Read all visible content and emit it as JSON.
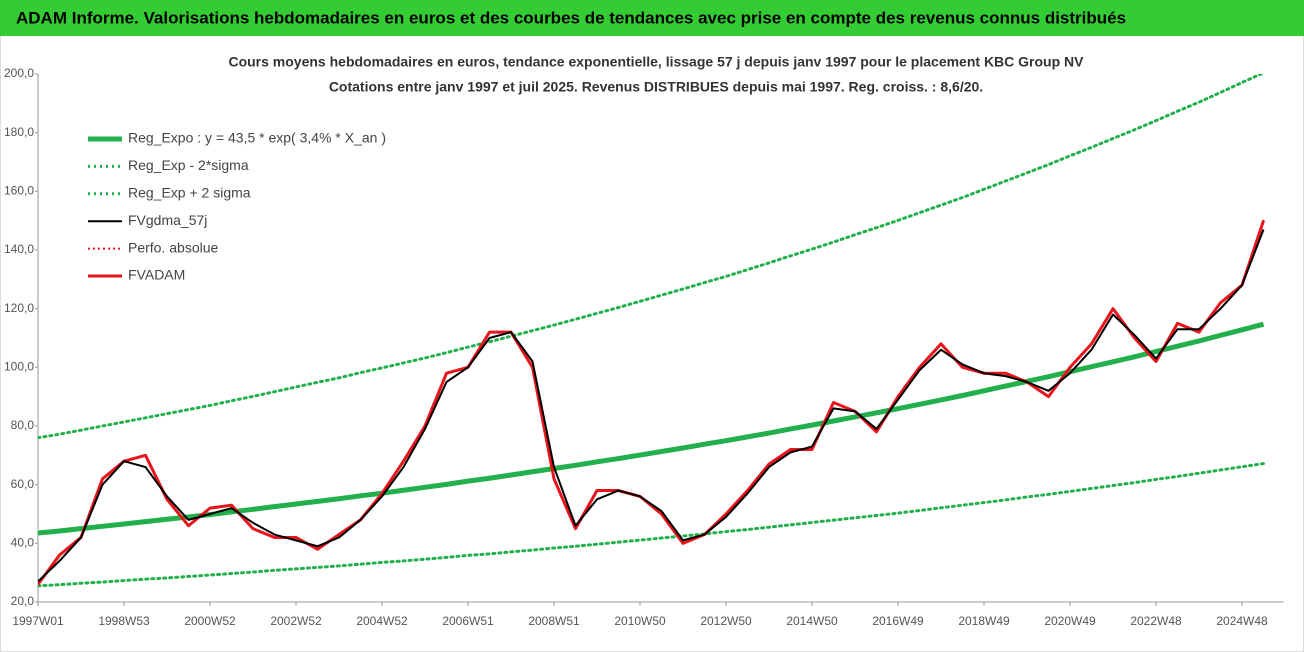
{
  "chart_data": {
    "type": "line",
    "title": "ADAM Informe. Valorisations hebdomadaires en euros et des courbes de tendances avec prise en compte des revenus connus distribués",
    "subtitle": [
      "Cours moyens hebdomadaires en euros, tendance exponentielle, lissage 57 j depuis janv 1997  pour le placement KBC Group NV",
      "Cotations entre janv 1997 et juil 2025. Revenus DISTRIBUES depuis mai 1997. Reg. croiss. : 8,6/20."
    ],
    "categories": [
      "1997W01",
      null,
      null,
      null,
      "1998W53",
      null,
      null,
      null,
      "2000W52",
      null,
      null,
      null,
      "2002W52",
      null,
      null,
      null,
      "2004W52",
      null,
      null,
      null,
      "2006W51",
      null,
      null,
      null,
      "2008W51",
      null,
      null,
      null,
      "2010W50",
      null,
      null,
      null,
      "2012W50",
      null,
      null,
      null,
      "2014W50",
      null,
      null,
      null,
      "2016W49",
      null,
      null,
      null,
      "2018W49",
      null,
      null,
      null,
      "2020W49",
      null,
      null,
      null,
      "2022W48",
      null,
      null,
      null,
      "2024W48",
      null
    ],
    "ylim": [
      20,
      200
    ],
    "yticks": [
      {
        "value": 20,
        "label": "20,0"
      },
      {
        "value": 40,
        "label": "40,0"
      },
      {
        "value": 60,
        "label": "60,0"
      },
      {
        "value": 80,
        "label": "80,0"
      },
      {
        "value": 100,
        "label": "100,0"
      },
      {
        "value": 120,
        "label": "120,0"
      },
      {
        "value": 140,
        "label": "140,0"
      },
      {
        "value": 160,
        "label": "160,0"
      },
      {
        "value": 180,
        "label": "180,0"
      },
      {
        "value": 200,
        "label": "200,0"
      }
    ],
    "legend": "upper left",
    "series": [
      {
        "name": "Reg_Expo : y = 43,5 * exp( 3,4% *  X_an )",
        "color": "#21b04b",
        "style": "solid",
        "width": 5,
        "values": [
          43.5,
          44.2,
          45.0,
          45.8,
          46.6,
          47.4,
          48.2,
          49.0,
          49.8,
          50.7,
          51.6,
          52.5,
          53.4,
          54.3,
          55.2,
          56.2,
          57.1,
          58.1,
          59.1,
          60.1,
          61.2,
          62.2,
          63.3,
          64.4,
          65.5,
          66.6,
          67.8,
          68.9,
          70.1,
          71.3,
          72.5,
          73.8,
          75.0,
          76.3,
          77.6,
          79.0,
          80.3,
          81.7,
          83.1,
          84.5,
          85.9,
          87.4,
          88.9,
          90.4,
          92.0,
          93.6,
          95.2,
          96.8,
          98.5,
          100.2,
          101.9,
          103.6,
          105.4,
          107.2,
          109.0,
          110.9,
          112.8,
          114.7
        ]
      },
      {
        "name": "Reg_Exp - 2*sigma",
        "color": "#21b04b",
        "style": "dotted",
        "width": 3,
        "values": [
          25.5,
          25.9,
          26.4,
          26.8,
          27.3,
          27.8,
          28.2,
          28.7,
          29.2,
          29.7,
          30.2,
          30.8,
          31.3,
          31.8,
          32.3,
          32.9,
          33.5,
          34.0,
          34.6,
          35.2,
          35.9,
          36.4,
          37.1,
          37.7,
          38.4,
          39.0,
          39.7,
          40.4,
          41.1,
          41.8,
          42.5,
          43.2,
          44.0,
          44.7,
          45.5,
          46.3,
          47.1,
          47.9,
          48.7,
          49.5,
          50.3,
          51.2,
          52.1,
          53.0,
          53.9,
          54.8,
          55.8,
          56.7,
          57.7,
          58.7,
          59.7,
          60.7,
          61.8,
          62.8,
          63.9,
          65.0,
          66.1,
          67.2
        ]
      },
      {
        "name": "Reg_Exp + 2 sigma",
        "color": "#21b04b",
        "style": "dotted",
        "width": 3,
        "values": [
          76.0,
          77.2,
          78.6,
          80.0,
          81.4,
          82.8,
          84.2,
          85.6,
          87.0,
          88.6,
          90.1,
          91.7,
          93.3,
          94.9,
          96.4,
          98.2,
          99.8,
          101.5,
          103.2,
          105.0,
          106.9,
          108.7,
          110.6,
          112.5,
          114.4,
          116.4,
          118.4,
          120.4,
          122.5,
          124.6,
          126.7,
          128.9,
          131.0,
          133.3,
          135.6,
          138.0,
          140.3,
          142.7,
          145.2,
          147.6,
          150.1,
          152.7,
          155.3,
          157.9,
          160.7,
          163.5,
          166.3,
          169.1,
          172.1,
          175.0,
          178.0,
          181.0,
          184.1,
          187.3,
          190.4,
          193.7,
          197.1,
          200.4
        ]
      },
      {
        "name": "FVgdma_57j",
        "color": "#000000",
        "style": "solid",
        "width": 2,
        "values": [
          27,
          34,
          42,
          60,
          68,
          66,
          56,
          48,
          50,
          52,
          47,
          43,
          41,
          39,
          42,
          48,
          56,
          66,
          79,
          95,
          100,
          110,
          112,
          102,
          66,
          46,
          55,
          58,
          56,
          51,
          41,
          43,
          49,
          57,
          66,
          71,
          73,
          86,
          85,
          79,
          89,
          99,
          106,
          101,
          98,
          97,
          95,
          92,
          98,
          106,
          118,
          111,
          103,
          113,
          113,
          120,
          128,
          147
        ]
      },
      {
        "name": "Perfo. absolue",
        "color": "#e8141b",
        "style": "dotted",
        "width": 2,
        "values": [
          26,
          36,
          42,
          62,
          68,
          70,
          55,
          46,
          52,
          53,
          45,
          42,
          42,
          38,
          43,
          48,
          57,
          68,
          80,
          98,
          100,
          112,
          112,
          100,
          62,
          45,
          58,
          58,
          56,
          50,
          40,
          43,
          50,
          58,
          67,
          72,
          72,
          88,
          85,
          78,
          90,
          100,
          108,
          100,
          98,
          98,
          95,
          90,
          100,
          108,
          120,
          110,
          102,
          115,
          112,
          122,
          128,
          150
        ]
      },
      {
        "name": "FVADAM",
        "color": "#e8141b",
        "style": "solid",
        "width": 3,
        "values": [
          26,
          36,
          42,
          62,
          68,
          70,
          55,
          46,
          52,
          53,
          45,
          42,
          42,
          38,
          43,
          48,
          57,
          68,
          80,
          98,
          100,
          112,
          112,
          100,
          62,
          45,
          58,
          58,
          56,
          50,
          40,
          43,
          50,
          58,
          67,
          72,
          72,
          88,
          85,
          78,
          90,
          100,
          108,
          100,
          98,
          98,
          95,
          90,
          100,
          108,
          120,
          110,
          102,
          115,
          112,
          122,
          128,
          150
        ]
      }
    ]
  }
}
